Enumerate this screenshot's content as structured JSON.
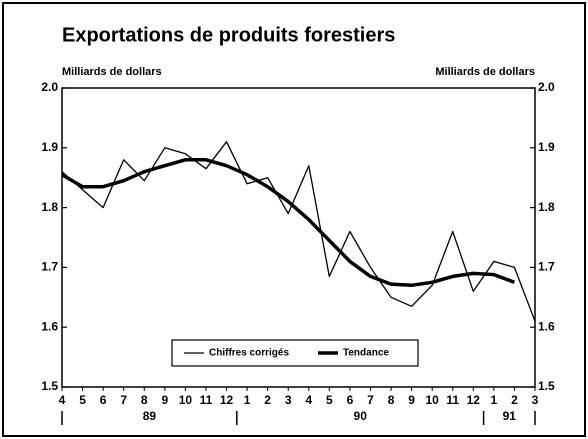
{
  "chart_data": {
    "type": "line",
    "title": "Exportations de produits forestiers",
    "ylabel": "Milliards de dollars",
    "y2label": "Milliards de dollars",
    "categories": [
      "4",
      "5",
      "6",
      "7",
      "8",
      "9",
      "10",
      "11",
      "12",
      "1",
      "2",
      "3",
      "4",
      "5",
      "6",
      "7",
      "8",
      "9",
      "10",
      "11",
      "12",
      "1",
      "2",
      "3"
    ],
    "years": [
      "89",
      "90",
      "91"
    ],
    "series": [
      {
        "name": "Chiffres corrigés",
        "color": "#000000",
        "values": [
          1.86,
          1.83,
          1.8,
          1.88,
          1.845,
          1.9,
          1.89,
          1.865,
          1.91,
          1.84,
          1.85,
          1.79,
          1.87,
          1.685,
          1.76,
          1.7,
          1.65,
          1.635,
          1.67,
          1.76,
          1.66,
          1.71,
          1.7,
          1.61
        ]
      },
      {
        "name": "Tendance",
        "color": "#000000",
        "values": [
          1.855,
          1.835,
          1.835,
          1.845,
          1.86,
          1.87,
          1.88,
          1.88,
          1.87,
          1.855,
          1.835,
          1.81,
          1.78,
          1.745,
          1.71,
          1.685,
          1.672,
          1.67,
          1.675,
          1.685,
          1.69,
          1.688,
          1.675,
          null
        ]
      }
    ],
    "ylim": [
      1.5,
      2.0
    ],
    "yticks": [
      1.5,
      1.6,
      1.7,
      1.8,
      1.9,
      {
        "value": 2.0,
        "label": "2.0"
      }
    ],
    "legend": "bottom"
  }
}
